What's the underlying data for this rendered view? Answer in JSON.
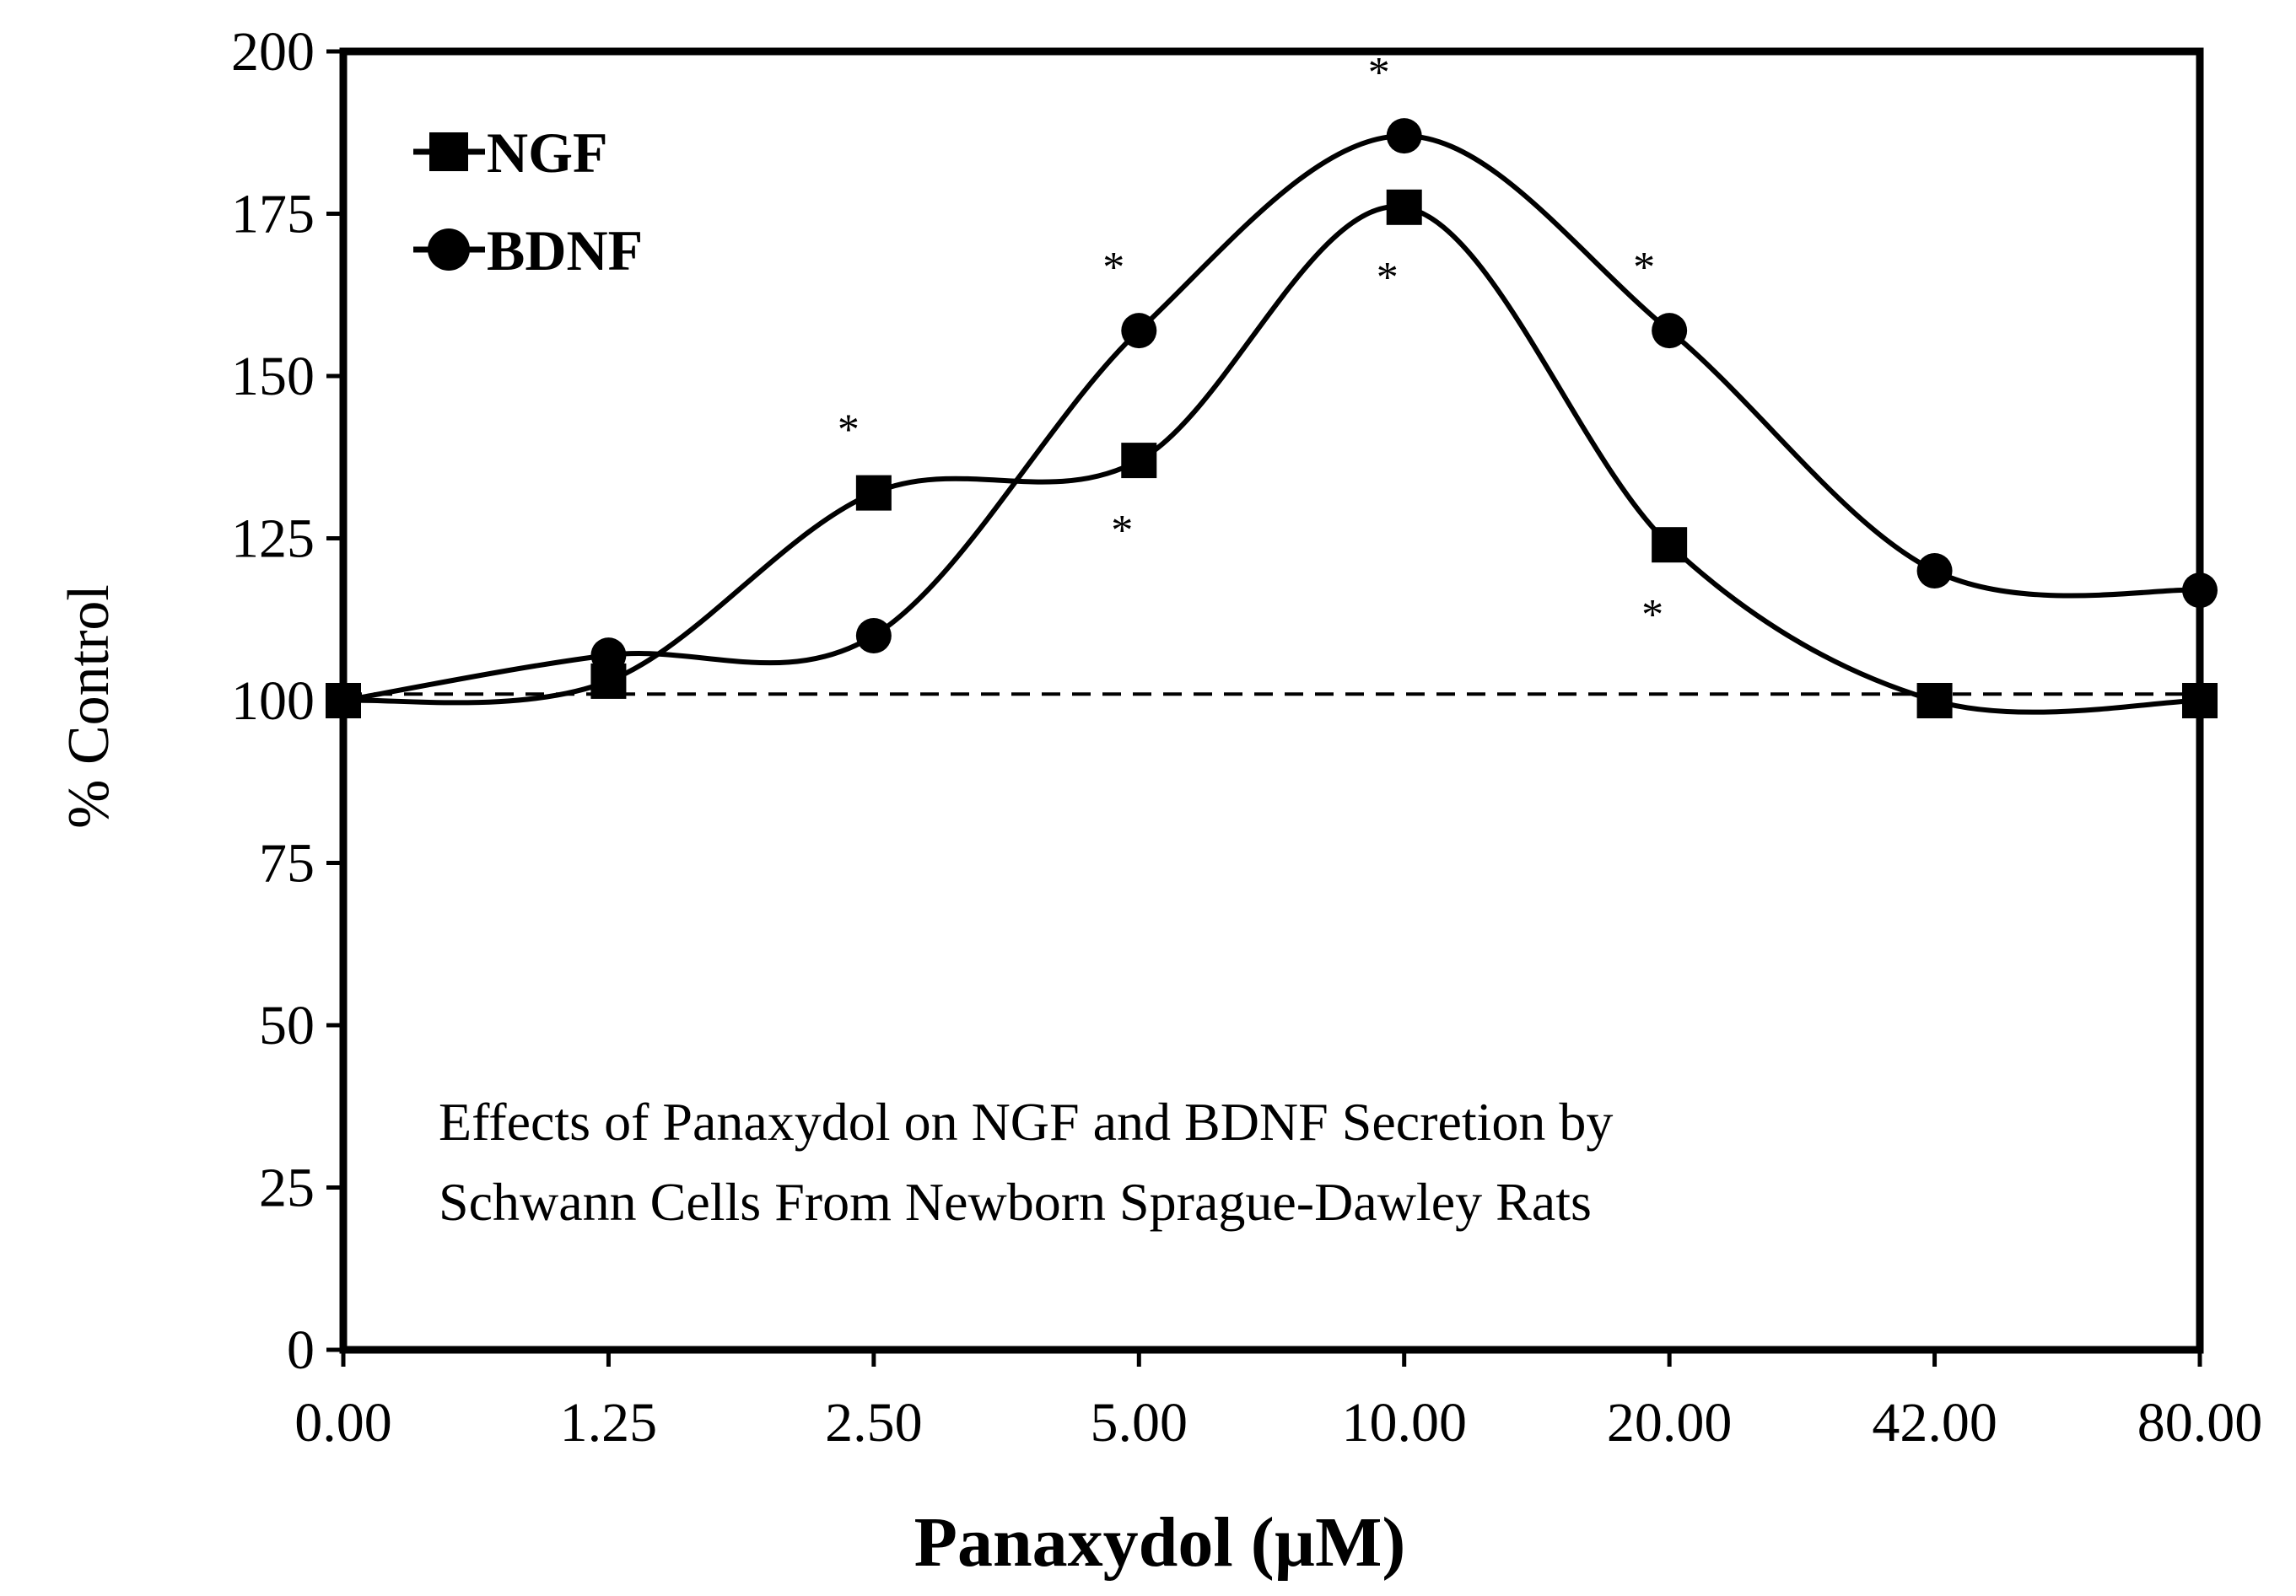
{
  "chart_data": {
    "type": "line",
    "title": "",
    "xlabel": "Panaxydol (µM)",
    "ylabel": "% Control",
    "categories": [
      "0.00",
      "1.25",
      "2.50",
      "5.00",
      "10.00",
      "20.00",
      "42.00",
      "80.00"
    ],
    "ylim": [
      0,
      200
    ],
    "yticks": [
      0,
      25,
      50,
      75,
      100,
      125,
      150,
      175,
      200
    ],
    "grid": false,
    "legend_position": "top-left",
    "series": [
      {
        "name": "NGF",
        "marker": "square",
        "values": [
          100,
          103,
          132,
          137,
          176,
          124,
          100,
          100
        ],
        "significant": [
          false,
          false,
          true,
          true,
          true,
          true,
          false,
          false
        ],
        "star_position": [
          "",
          "",
          "above",
          "below",
          "below",
          "below",
          "",
          ""
        ]
      },
      {
        "name": "BDNF",
        "marker": "circle",
        "values": [
          100,
          107,
          110,
          157,
          187,
          157,
          120,
          117
        ],
        "significant": [
          false,
          false,
          false,
          true,
          true,
          true,
          false,
          false
        ],
        "star_position": [
          "",
          "",
          "",
          "above",
          "above",
          "above",
          "",
          ""
        ]
      }
    ],
    "reference_line": {
      "value": 101,
      "style": "dashed"
    },
    "significance_symbol": "*",
    "annotation": [
      "Effects of Panaxydol on NGF and BDNF Secretion by",
      "Schwann Cells From Newborn Sprague-Dawley Rats"
    ],
    "colors": {
      "line": "#000000",
      "marker": "#000000",
      "background": "#ffffff"
    }
  }
}
